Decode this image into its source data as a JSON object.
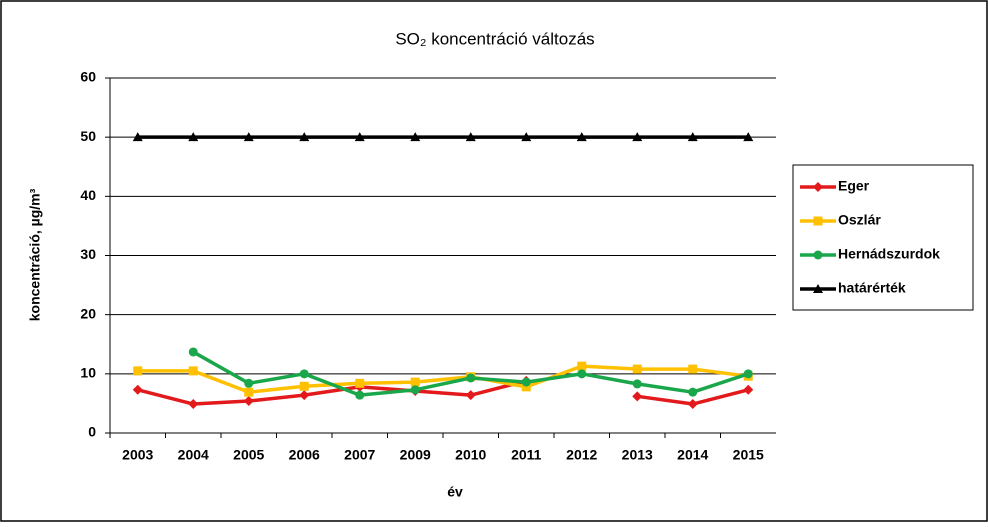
{
  "chart_data": {
    "type": "line",
    "title": "SO₂ koncentráció változás",
    "x_label": "év",
    "y_label": "koncentráció,  µg/m³",
    "categories": [
      "2003",
      "2004",
      "2005",
      "2006",
      "2007",
      "2009",
      "2010",
      "2011",
      "2012",
      "2013",
      "2014",
      "2015"
    ],
    "series": [
      {
        "name": "Eger",
        "color": "#e31a1c",
        "marker": "diamond",
        "values": [
          7.3,
          4.9,
          5.4,
          6.4,
          7.8,
          7.1,
          6.4,
          8.8,
          null,
          6.2,
          4.9,
          7.3
        ]
      },
      {
        "name": "Oszlár",
        "color": "#ffc000",
        "marker": "square",
        "values": [
          10.5,
          10.5,
          6.9,
          7.9,
          8.4,
          8.6,
          9.5,
          7.8,
          11.3,
          10.8,
          10.8,
          9.6
        ]
      },
      {
        "name": "Hernádszurdok",
        "color": "#1aa64a",
        "marker": "circle",
        "values": [
          null,
          13.7,
          8.4,
          10.0,
          6.4,
          7.3,
          9.3,
          8.6,
          10.0,
          8.3,
          6.9,
          10.0
        ]
      },
      {
        "name": "határérték",
        "color": "#000000",
        "marker": "triangle",
        "values": [
          50,
          50,
          50,
          50,
          50,
          50,
          50,
          50,
          50,
          50,
          50,
          50
        ]
      }
    ],
    "ylim": [
      0,
      60
    ],
    "yticks": [
      0,
      10,
      20,
      30,
      40,
      50,
      60
    ],
    "grid": true,
    "legend": "right"
  }
}
